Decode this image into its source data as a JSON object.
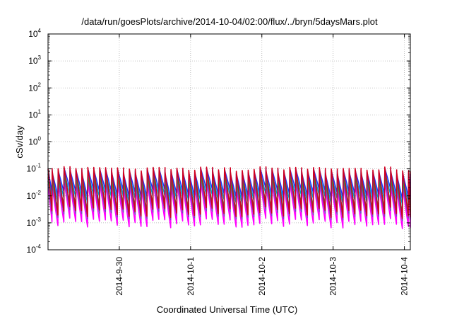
{
  "chart_data": {
    "type": "line",
    "title": "/data/run/goesPlots/archive/2014-10-04/02:00/flux/../bryn/5daysMars.plot",
    "xlabel": "Coordinated Universal Time (UTC)",
    "ylabel": "cSv/day",
    "y_scale": "log",
    "ylim": [
      0.0001,
      10000
    ],
    "xlim": [
      "2014-09-29 00:00",
      "2014-10-04 02:00"
    ],
    "x_ticks": [
      "2014-9-30",
      "2014-10-1",
      "2014-10-2",
      "2014-10-3",
      "2014-10-4"
    ],
    "y_ticks": [
      {
        "base": "10",
        "exp": "-4"
      },
      {
        "base": "10",
        "exp": "-3"
      },
      {
        "base": "10",
        "exp": "-2"
      },
      {
        "base": "10",
        "exp": "-1"
      },
      {
        "base": "10",
        "exp": "0"
      },
      {
        "base": "10",
        "exp": "1"
      },
      {
        "base": "10",
        "exp": "2"
      },
      {
        "base": "10",
        "exp": "3"
      },
      {
        "base": "10",
        "exp": "4"
      }
    ],
    "grid": true,
    "legend": "none",
    "pattern": {
      "type": "sawtooth",
      "period_hours": 2,
      "description_free": true
    },
    "series": [
      {
        "color": "#d00020",
        "peak_range": [
          0.055,
          0.12
        ],
        "trough_range": [
          0.0009,
          0.004
        ]
      },
      {
        "color": "#1a3cff",
        "peak_range": [
          0.04,
          0.11
        ],
        "trough_range": [
          0.005,
          0.02
        ]
      },
      {
        "color": "#00a0c8",
        "peak_range": [
          0.03,
          0.08
        ],
        "trough_range": [
          0.003,
          0.012
        ]
      },
      {
        "color": "#20a040",
        "peak_range": [
          0.02,
          0.06
        ],
        "trough_range": [
          0.0015,
          0.006
        ]
      },
      {
        "color": "#8040c0",
        "peak_range": [
          0.015,
          0.045
        ],
        "trough_range": [
          0.0008,
          0.003
        ]
      },
      {
        "color": "#ff00ff",
        "peak_range": [
          0.01,
          0.035
        ],
        "trough_range": [
          0.0004,
          0.0015
        ]
      }
    ]
  }
}
